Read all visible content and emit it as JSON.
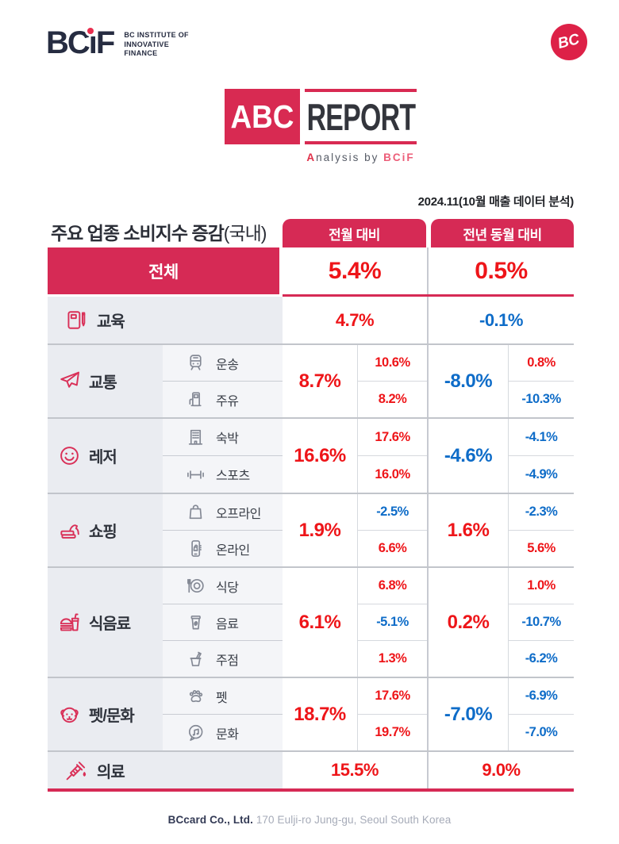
{
  "branding": {
    "logo_text": "BCiF",
    "tagline_lines": [
      "BC INSTITUTE OF",
      "INNOVATIVE",
      "FINANCE"
    ],
    "badge_text": "BC"
  },
  "report_logo": {
    "abc": "ABC",
    "report": "REPORT",
    "subtitle_parts": [
      "A",
      "nalysis by ",
      "BCiF"
    ]
  },
  "meta": {
    "date_note": "2024.11(10월 매출 데이터 분석)"
  },
  "table": {
    "title": "주요 업종 소비지수 증감",
    "title_suffix": "(국내)",
    "col_mom": "전월 대비",
    "col_yoy": "전년 동월 대비",
    "total": {
      "label": "전체",
      "mom": "5.4%",
      "yoy": "0.5%"
    },
    "rows": [
      {
        "label": "교육",
        "icon": "book-icon",
        "mom": "4.7%",
        "yoy": "-0.1%",
        "subs": []
      },
      {
        "label": "교통",
        "icon": "airplane-icon",
        "mom": "8.7%",
        "yoy": "-8.0%",
        "subs": [
          {
            "label": "운송",
            "icon": "train-icon",
            "mom": "10.6%",
            "yoy": "0.8%"
          },
          {
            "label": "주유",
            "icon": "fuel-pump-icon",
            "mom": "8.2%",
            "yoy": "-10.3%"
          }
        ]
      },
      {
        "label": "레저",
        "icon": "smiley-icon",
        "mom": "16.6%",
        "yoy": "-4.6%",
        "subs": [
          {
            "label": "숙박",
            "icon": "hotel-icon",
            "mom": "17.6%",
            "yoy": "-4.1%"
          },
          {
            "label": "스포츠",
            "icon": "dumbbell-icon",
            "mom": "16.0%",
            "yoy": "-4.9%"
          }
        ]
      },
      {
        "label": "쇼핑",
        "icon": "card-hand-icon",
        "mom": "1.9%",
        "yoy": "1.6%",
        "subs": [
          {
            "label": "오프라인",
            "icon": "shopping-bag-icon",
            "mom": "-2.5%",
            "yoy": "-2.3%"
          },
          {
            "label": "온라인",
            "icon": "mobile-shopping-icon",
            "mom": "6.6%",
            "yoy": "5.6%"
          }
        ]
      },
      {
        "label": "식음료",
        "icon": "burger-drink-icon",
        "mom": "6.1%",
        "yoy": "0.2%",
        "subs": [
          {
            "label": "식당",
            "icon": "restaurant-icon",
            "mom": "6.8%",
            "yoy": "1.0%"
          },
          {
            "label": "음료",
            "icon": "cup-icon",
            "mom": "-5.1%",
            "yoy": "-10.7%"
          },
          {
            "label": "주점",
            "icon": "pub-icon",
            "mom": "1.3%",
            "yoy": "-6.2%"
          }
        ]
      },
      {
        "label": "펫/문화",
        "icon": "dog-icon",
        "mom": "18.7%",
        "yoy": "-7.0%",
        "subs": [
          {
            "label": "펫",
            "icon": "paw-icon",
            "mom": "17.6%",
            "yoy": "-6.9%"
          },
          {
            "label": "문화",
            "icon": "culture-icon",
            "mom": "19.7%",
            "yoy": "-7.0%"
          }
        ]
      },
      {
        "label": "의료",
        "icon": "syringe-icon",
        "mom": "15.5%",
        "yoy": "9.0%",
        "subs": []
      }
    ]
  },
  "footer": {
    "company": "BCcard Co., Ltd.",
    "address": "170 Eulji-ro Jung-gu, Seoul South Korea"
  },
  "colors": {
    "brand_crimson": "#d62a55",
    "value_up_red": "#ee1519",
    "value_down_blue": "#0e6cc8",
    "category_cell_gray": "#eaecf1",
    "subcategory_cell_gray": "#f4f5f8"
  }
}
